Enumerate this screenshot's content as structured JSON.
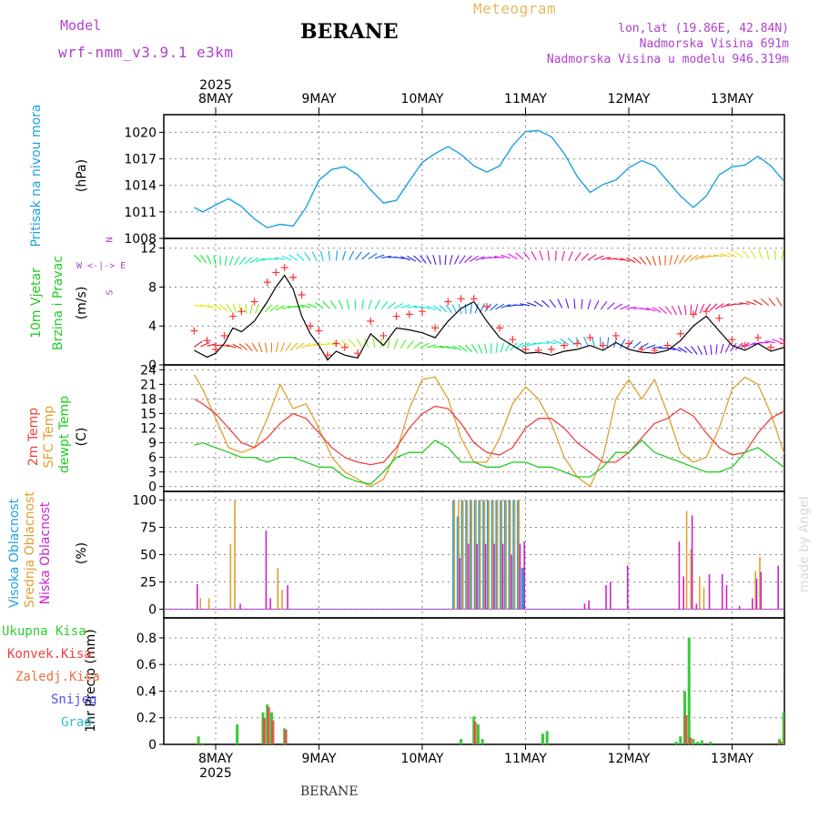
{
  "header": {
    "model_label": "Model",
    "model_name": "wrf-nmm_v3.9.1 e3km",
    "station": "BERANE",
    "product": "Meteogram",
    "lonlat": "lon,lat (19.86E, 42.84N)",
    "altitude": "Nadmorska Visina 691m",
    "model_altitude": "Nadmorska Visina u modelu 946.319m",
    "watermark": "made by Angel",
    "footer_station": "BERANE"
  },
  "colors": {
    "pressure": "#1ea0e0",
    "wind_speed": "#000000",
    "wind_gust": "#ff3030",
    "t2m": "#ee4040",
    "tsfc": "#e0a030",
    "dewpt": "#22cc22",
    "cloud_high": "#20a0e0",
    "cloud_mid": "#e0a030",
    "cloud_low": "#cc22cc",
    "precip_total": "#33cc33",
    "precip_conv": "#ee4040",
    "axis_purple": "#b040d0"
  },
  "time_axis": {
    "year_label": "2025",
    "day_labels": [
      "8MAY",
      "9MAY",
      "10MAY",
      "11MAY",
      "12MAY",
      "13MAY"
    ]
  },
  "chart_data": [
    {
      "type": "line",
      "title": "Pritisak na nivou mora",
      "ylabel": "(hPa)",
      "ylim": [
        1008,
        1022
      ],
      "yticks": [
        1008,
        1011,
        1014,
        1017,
        1020
      ],
      "x_unit": "hours from 8MAY 00UTC",
      "series": [
        {
          "name": "MSLP",
          "x": [
            -5,
            -3,
            0,
            3,
            6,
            9,
            12,
            15,
            18,
            21,
            24,
            27,
            30,
            33,
            36,
            39,
            42,
            45,
            48,
            51,
            54,
            57,
            60,
            63,
            66,
            69,
            72,
            75,
            78,
            81,
            84,
            87,
            90,
            93,
            96,
            99,
            102,
            105,
            108,
            111,
            114,
            117,
            120,
            123,
            126,
            129,
            132,
            135,
            138,
            141,
            144,
            147,
            150,
            153,
            154
          ],
          "values": [
            1011.5,
            1011.0,
            1011.8,
            1012.5,
            1011.6,
            1010.2,
            1009.2,
            1009.6,
            1009.4,
            1011.5,
            1014.6,
            1015.8,
            1016.1,
            1015.2,
            1013.5,
            1012.0,
            1012.3,
            1014.5,
            1016.6,
            1017.6,
            1018.4,
            1017.5,
            1016.2,
            1015.5,
            1016.2,
            1018.5,
            1020.1,
            1020.2,
            1019.5,
            1017.6,
            1015.0,
            1013.2,
            1014.1,
            1014.6,
            1016.0,
            1016.8,
            1016.2,
            1014.5,
            1012.8,
            1011.5,
            1012.8,
            1015.2,
            1016.1,
            1016.3,
            1017.3,
            1016.2,
            1014.5,
            1014.3,
            1014.2,
            1014.2,
            1014.2,
            1014.2,
            1014.2,
            1014.2,
            1014.2
          ]
        }
      ]
    },
    {
      "type": "line",
      "title": "10m Vjetar Brzina i Pravac",
      "ylabel": "(m/s)",
      "compass_label": "W <-|-> E",
      "compass_n": "N",
      "compass_s": "S",
      "ylim": [
        0,
        13
      ],
      "yticks": [
        0,
        4,
        8,
        12
      ],
      "series": [
        {
          "name": "wind speed",
          "x": [
            -5,
            -2,
            0,
            2,
            4,
            6,
            9,
            12,
            14,
            16,
            18,
            20,
            22,
            24,
            26,
            28,
            30,
            33,
            36,
            39,
            42,
            45,
            48,
            51,
            54,
            57,
            60,
            63,
            66,
            69,
            72,
            75,
            78,
            81,
            84,
            87,
            90,
            93,
            96,
            99,
            102,
            105,
            108,
            111,
            114,
            117,
            120,
            123,
            126,
            129,
            132,
            135,
            138,
            141,
            144,
            147,
            150,
            153
          ],
          "values": [
            1.5,
            0.8,
            1.2,
            2.2,
            3.8,
            3.4,
            4.5,
            6.5,
            8.0,
            9.2,
            7.8,
            5.0,
            3.2,
            2.0,
            0.5,
            1.4,
            1.0,
            0.7,
            3.2,
            2.0,
            3.8,
            3.6,
            3.3,
            2.8,
            4.5,
            5.8,
            6.5,
            4.5,
            2.8,
            2.0,
            1.2,
            1.3,
            1.0,
            1.4,
            1.6,
            2.0,
            1.5,
            2.3,
            1.6,
            1.3,
            1.2,
            1.5,
            2.5,
            4.0,
            5.0,
            3.5,
            2.0,
            1.5,
            2.2,
            1.4,
            1.8,
            3.5,
            5.0,
            5.8,
            6.0,
            5.8,
            5.7,
            5.7
          ]
        },
        {
          "name": "wind gust",
          "x": [
            -5,
            -2,
            0,
            2,
            4,
            6,
            9,
            12,
            14,
            16,
            18,
            20,
            22,
            24,
            26,
            28,
            30,
            33,
            36,
            39,
            42,
            45,
            48,
            51,
            54,
            57,
            60,
            63,
            66,
            69,
            72,
            75,
            78,
            81,
            84,
            87,
            90,
            93,
            96,
            99,
            102,
            105,
            108,
            111,
            114,
            117,
            120,
            123,
            126,
            129,
            132,
            135,
            138,
            141,
            144,
            147,
            150,
            153
          ],
          "values": [
            3.5,
            2.5,
            1.6,
            3.0,
            5.0,
            5.5,
            6.5,
            8.5,
            9.5,
            10.0,
            9.0,
            7.2,
            4.0,
            3.5,
            1.0,
            2.2,
            1.8,
            1.2,
            4.5,
            3.0,
            5.0,
            5.2,
            5.5,
            3.8,
            6.5,
            6.8,
            6.8,
            6.0,
            3.8,
            2.6,
            1.6,
            1.5,
            1.6,
            2.0,
            2.2,
            2.8,
            2.0,
            3.0,
            2.2,
            1.6,
            1.5,
            2.0,
            3.2,
            5.2,
            5.5,
            4.8,
            2.6,
            2.0,
            2.8,
            1.8,
            2.2,
            4.8,
            6.2,
            6.3,
            6.0,
            5.9,
            5.8,
            5.8
          ]
        }
      ]
    },
    {
      "type": "line",
      "title": "2m Temp / SFC Temp / dewpt Temp",
      "ylabel": "(C)",
      "ylim": [
        -1,
        25
      ],
      "yticks": [
        0,
        3,
        6,
        9,
        12,
        15,
        18,
        21,
        24
      ],
      "series": [
        {
          "name": "2m Temp",
          "x": [
            -5,
            -3,
            0,
            3,
            6,
            9,
            12,
            15,
            18,
            21,
            24,
            27,
            30,
            33,
            36,
            39,
            42,
            45,
            48,
            51,
            54,
            57,
            60,
            63,
            66,
            69,
            72,
            75,
            78,
            81,
            84,
            87,
            90,
            93,
            96,
            99,
            102,
            105,
            108,
            111,
            114,
            117,
            120,
            123,
            126,
            129,
            132,
            135,
            138,
            141,
            144,
            147,
            150,
            153
          ],
          "values": [
            18,
            17,
            15,
            12,
            9,
            8,
            10,
            13,
            15,
            14,
            11,
            8,
            6,
            5,
            4.5,
            5,
            8,
            12,
            15,
            16.5,
            16,
            13,
            9,
            7,
            6.5,
            8,
            12,
            14,
            14,
            12,
            9,
            7,
            5,
            5,
            7,
            10,
            13,
            14,
            16,
            14.5,
            11,
            8,
            6.5,
            7,
            11,
            14,
            15.5,
            14,
            11,
            8,
            6,
            5.5,
            5,
            7
          ]
        },
        {
          "name": "SFC Temp",
          "x": [
            -5,
            -3,
            0,
            3,
            6,
            9,
            12,
            15,
            18,
            21,
            24,
            27,
            30,
            33,
            36,
            39,
            42,
            45,
            48,
            51,
            54,
            57,
            60,
            63,
            66,
            69,
            72,
            75,
            78,
            81,
            84,
            87,
            90,
            93,
            96,
            99,
            102,
            105,
            108,
            111,
            114,
            117,
            120,
            123,
            126,
            129,
            132,
            135,
            138,
            141,
            144,
            147,
            150,
            153
          ],
          "values": [
            23,
            20,
            14,
            8,
            7,
            8,
            14,
            21,
            16,
            17,
            12,
            6,
            3,
            1.5,
            0,
            1.5,
            7,
            16,
            22,
            22.5,
            18,
            10,
            5,
            5,
            10,
            17,
            20.5,
            18,
            13,
            6,
            2,
            0,
            6,
            18,
            22,
            18,
            22,
            15,
            7,
            5,
            6,
            12,
            20,
            22.5,
            21,
            15,
            7,
            4,
            2,
            1,
            4,
            12,
            18,
            17
          ]
        },
        {
          "name": "dewpt Temp",
          "x": [
            -5,
            -3,
            0,
            3,
            6,
            9,
            12,
            15,
            18,
            21,
            24,
            27,
            30,
            33,
            36,
            39,
            42,
            45,
            48,
            51,
            54,
            57,
            60,
            63,
            66,
            69,
            72,
            75,
            78,
            81,
            84,
            87,
            90,
            93,
            96,
            99,
            102,
            105,
            108,
            111,
            114,
            117,
            120,
            123,
            126,
            129,
            132,
            135,
            138,
            141,
            144,
            147,
            150,
            153
          ],
          "values": [
            8.5,
            9,
            8,
            7,
            6,
            6,
            5,
            6,
            6,
            5,
            4,
            4,
            2,
            1,
            0.5,
            3,
            6,
            7,
            7,
            9.5,
            8,
            5,
            5,
            4,
            4,
            5,
            5,
            4,
            4,
            3,
            2,
            2,
            4,
            7,
            7,
            9.5,
            7,
            6,
            5,
            4,
            3,
            3,
            4,
            7,
            8,
            6,
            4,
            3,
            2,
            2,
            3,
            2,
            1,
            1.5
          ]
        }
      ]
    },
    {
      "type": "bar",
      "title": "Visoka / Srednja / Niska Oblacnost",
      "ylabel": "(%)",
      "ylim": [
        0,
        100
      ],
      "yticks": [
        0,
        25,
        50,
        75,
        100
      ],
      "series": [
        {
          "name": "Visoka Oblacnost",
          "x": [
            55,
            56,
            57,
            58,
            59,
            60,
            61,
            62,
            63,
            64,
            65,
            66,
            67,
            68,
            69,
            70,
            71
          ],
          "values": [
            100,
            85,
            100,
            100,
            100,
            100,
            100,
            100,
            100,
            100,
            100,
            100,
            100,
            100,
            100,
            100,
            38
          ]
        },
        {
          "name": "Srednja Oblacnost",
          "x": [
            -4,
            -2,
            3,
            4,
            14,
            15,
            55,
            56,
            57,
            58,
            59,
            60,
            61,
            62,
            63,
            64,
            65,
            66,
            67,
            68,
            69,
            70,
            109,
            110,
            112,
            113,
            125,
            126
          ],
          "values": [
            10,
            10,
            60,
            100,
            38,
            18,
            100,
            100,
            100,
            100,
            100,
            100,
            100,
            100,
            100,
            100,
            100,
            100,
            100,
            100,
            100,
            100,
            90,
            55,
            30,
            20,
            35,
            48
          ]
        },
        {
          "name": "Niska Oblacnost",
          "x": [
            -5,
            5,
            11,
            12,
            16,
            56,
            58,
            60,
            62,
            64,
            66,
            68,
            70,
            71,
            85,
            86,
            90,
            91,
            95,
            107,
            108,
            110,
            111,
            114,
            117,
            118,
            121,
            124,
            125,
            126,
            130,
            135,
            140,
            141,
            146,
            148
          ],
          "values": [
            23,
            5,
            72,
            10,
            22,
            47,
            60,
            60,
            60,
            60,
            60,
            50,
            60,
            62,
            5,
            8,
            22,
            25,
            40,
            62,
            30,
            86,
            5,
            32,
            32,
            22,
            3,
            10,
            28,
            34,
            40,
            42,
            80,
            12,
            22,
            47
          ]
        }
      ]
    },
    {
      "type": "bar",
      "title": "Ukupna Kisa / Konvek.Kisa / Zaledj.Kisa / Snijeg / Grad",
      "ylabel": "1hr Precip (mm)",
      "ylim": [
        0,
        0.95
      ],
      "yticks": [
        0,
        0.2,
        0.4,
        0.6,
        0.8
      ],
      "legend": [
        "Ukupna Kisa",
        "Konvek.Kisa",
        "Zaledj.Kisa",
        "Snijeg",
        "Grad"
      ],
      "series": [
        {
          "name": "Ukupna Kisa",
          "x": [
            -4,
            -3,
            5,
            11,
            12,
            13,
            16,
            57,
            60,
            61,
            62,
            76,
            77,
            107,
            108,
            109,
            110,
            111,
            112,
            113,
            115,
            131,
            132,
            133,
            134,
            135
          ],
          "values": [
            0.06,
            0.01,
            0.15,
            0.24,
            0.3,
            0.24,
            0.12,
            0.04,
            0.21,
            0.15,
            0.04,
            0.08,
            0.1,
            0.02,
            0.06,
            0.4,
            0.8,
            0.04,
            0.02,
            0.03,
            0.02,
            0.04,
            0.24,
            0.5,
            0.32,
            0.09
          ]
        },
        {
          "name": "Konvek.Kisa",
          "x": [
            -4,
            11,
            12,
            13,
            16,
            60,
            109,
            110,
            131,
            132,
            133,
            134,
            135
          ],
          "values": [
            0.01,
            0.2,
            0.28,
            0.18,
            0.11,
            0.17,
            0.22,
            0.05,
            0.02,
            0.18,
            0.48,
            0.16,
            0.06
          ]
        }
      ]
    }
  ],
  "panel_labels": {
    "p1": "Pritisak na nivou mora",
    "p1_unit": "(hPa)",
    "p2a": "10m Vjetar",
    "p2b": "Brzina i Pravac",
    "p2_unit": "(m/s)",
    "p3a": "2m Temp",
    "p3b": "SFC Temp",
    "p3c": "dewpt Temp",
    "p3_unit": "(C)",
    "p4a": "Visoka Oblacnost",
    "p4b": "Srednja Oblacnost",
    "p4c": "Niska Oblacnost",
    "p4_unit": "(%)",
    "p5_unit": "1hr Precip (mm)",
    "legend": [
      "Ukupna Kisa",
      "Konvek.Kisa",
      "Zaledj.Kisa",
      "Snijeg",
      "Grad"
    ]
  }
}
